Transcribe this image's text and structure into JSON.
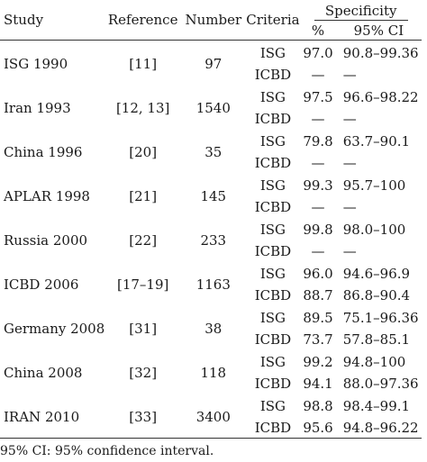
{
  "headers": {
    "study": "Study",
    "reference": "Reference",
    "number": "Number",
    "criteria": "Criteria",
    "specificity": "Specificity",
    "pct": "%",
    "ci": "95% CI"
  },
  "rows": [
    {
      "study": "ISG 1990",
      "reference": "[11]",
      "number": "97",
      "isg": {
        "criteria": "ISG",
        "pct": "97.0",
        "ci": "90.8–99.36"
      },
      "icbd": {
        "criteria": "ICBD",
        "pct": "—",
        "ci": "—"
      }
    },
    {
      "study": "Iran 1993",
      "reference": "[12, 13]",
      "number": "1540",
      "isg": {
        "criteria": "ISG",
        "pct": "97.5",
        "ci": "96.6–98.22"
      },
      "icbd": {
        "criteria": "ICBD",
        "pct": "—",
        "ci": "—"
      }
    },
    {
      "study": "China 1996",
      "reference": "[20]",
      "number": "35",
      "isg": {
        "criteria": "ISG",
        "pct": "79.8",
        "ci": "63.7–90.1"
      },
      "icbd": {
        "criteria": "ICBD",
        "pct": "—",
        "ci": "—"
      }
    },
    {
      "study": "APLAR 1998",
      "reference": "[21]",
      "number": "145",
      "isg": {
        "criteria": "ISG",
        "pct": "99.3",
        "ci": "95.7–100"
      },
      "icbd": {
        "criteria": "ICBD",
        "pct": "—",
        "ci": "—"
      }
    },
    {
      "study": "Russia 2000",
      "reference": "[22]",
      "number": "233",
      "isg": {
        "criteria": "ISG",
        "pct": "99.8",
        "ci": "98.0–100"
      },
      "icbd": {
        "criteria": "ICBD",
        "pct": "—",
        "ci": "—"
      }
    },
    {
      "study": "ICBD 2006",
      "reference": "[17–19]",
      "number": "1163",
      "isg": {
        "criteria": "ISG",
        "pct": "96.0",
        "ci": "94.6–96.9"
      },
      "icbd": {
        "criteria": "ICBD",
        "pct": "88.7",
        "ci": "86.8–90.4"
      }
    },
    {
      "study": "Germany 2008",
      "reference": "[31]",
      "number": "38",
      "isg": {
        "criteria": "ISG",
        "pct": "89.5",
        "ci": "75.1–96.36"
      },
      "icbd": {
        "criteria": "ICBD",
        "pct": "73.7",
        "ci": "57.8–85.1"
      }
    },
    {
      "study": "China 2008",
      "reference": "[32]",
      "number": "118",
      "isg": {
        "criteria": "ISG",
        "pct": "99.2",
        "ci": "94.8–100"
      },
      "icbd": {
        "criteria": "ICBD",
        "pct": "94.1",
        "ci": "88.0–97.36"
      }
    },
    {
      "study": "IRAN 2010",
      "reference": "[33]",
      "number": "3400",
      "isg": {
        "criteria": "ISG",
        "pct": "98.8",
        "ci": "98.4–99.1"
      },
      "icbd": {
        "criteria": "ICBD",
        "pct": "95.6",
        "ci": "94.8–96.22"
      }
    }
  ],
  "footnote": "95% CI: 95% confidence interval."
}
